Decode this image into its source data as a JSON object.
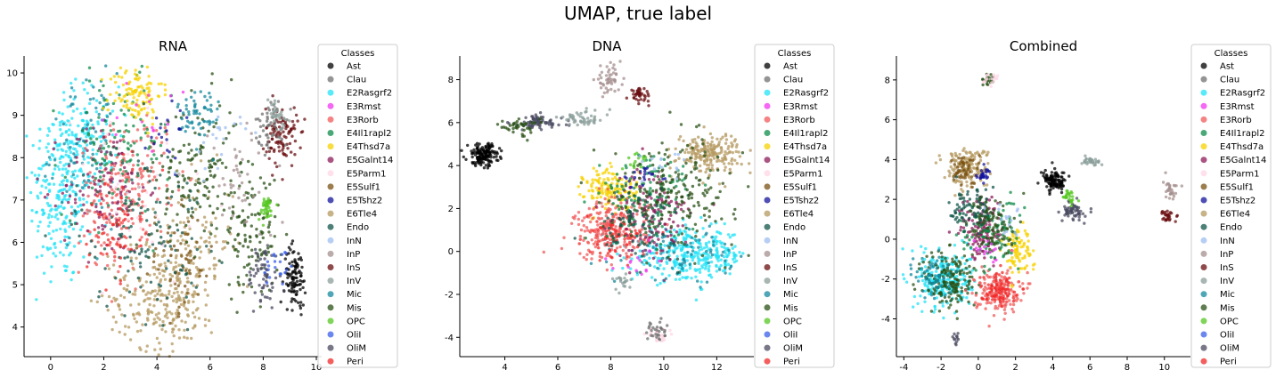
{
  "suptitle": "UMAP, true label",
  "legend": {
    "title": "Classes",
    "classes": [
      {
        "name": "Ast",
        "color": "#000000"
      },
      {
        "name": "Clau",
        "color": "#707070"
      },
      {
        "name": "E2Rasgrf2",
        "color": "#22e3f7"
      },
      {
        "name": "E3Rmst",
        "color": "#f234f0"
      },
      {
        "name": "E3Rorb",
        "color": "#f25a5a"
      },
      {
        "name": "E4Il1rapl2",
        "color": "#0f8c4a"
      },
      {
        "name": "E4Thsd7a",
        "color": "#f7d200"
      },
      {
        "name": "E5Galnt14",
        "color": "#8c1b5a"
      },
      {
        "name": "E5Parm1",
        "color": "#ffd6e6"
      },
      {
        "name": "E5Sulf1",
        "color": "#7a5213"
      },
      {
        "name": "E5Tshz2",
        "color": "#13139c"
      },
      {
        "name": "E6Tle4",
        "color": "#b59a60"
      },
      {
        "name": "Endo",
        "color": "#11564a"
      },
      {
        "name": "InN",
        "color": "#9fbdf0"
      },
      {
        "name": "InP",
        "color": "#a68f8f"
      },
      {
        "name": "InS",
        "color": "#6a0d10"
      },
      {
        "name": "InV",
        "color": "#8a9e9a"
      },
      {
        "name": "Mic",
        "color": "#13889e"
      },
      {
        "name": "Mis",
        "color": "#2a5217"
      },
      {
        "name": "OPC",
        "color": "#55c722"
      },
      {
        "name": "OliI",
        "color": "#3a5ee8"
      },
      {
        "name": "OliM",
        "color": "#4a4a60"
      },
      {
        "name": "Peri",
        "color": "#f22828"
      }
    ]
  },
  "chart_data": [
    {
      "type": "scatter",
      "title": "RNA",
      "xlim": [
        -1.0,
        10.2
      ],
      "ylim": [
        3.3,
        10.4
      ],
      "xticks": [
        0,
        2,
        4,
        6,
        8,
        10
      ],
      "yticks": [
        4,
        5,
        6,
        7,
        8,
        9,
        10
      ],
      "clusters": [
        {
          "cls": "E2Rasgrf2",
          "cx": 0.4,
          "cy": 7.2,
          "sx": 0.6,
          "sy": 1.1,
          "n": 260
        },
        {
          "cls": "E2Rasgrf2",
          "cx": 1.4,
          "cy": 8.5,
          "sx": 0.6,
          "sy": 0.6,
          "n": 110
        },
        {
          "cls": "Mic",
          "cx": 1.2,
          "cy": 8.2,
          "sx": 0.6,
          "sy": 0.9,
          "n": 80
        },
        {
          "cls": "E3Rorb",
          "cx": 2.3,
          "cy": 6.8,
          "sx": 0.6,
          "sy": 0.8,
          "n": 130
        },
        {
          "cls": "E3Rorb",
          "cx": 3.5,
          "cy": 7.6,
          "sx": 0.6,
          "sy": 0.7,
          "n": 90
        },
        {
          "cls": "E4Il1rapl2",
          "cx": 2.5,
          "cy": 8.2,
          "sx": 1.0,
          "sy": 0.8,
          "n": 120
        },
        {
          "cls": "E4Thsd7a",
          "cx": 3.2,
          "cy": 9.5,
          "sx": 0.5,
          "sy": 0.35,
          "n": 110
        },
        {
          "cls": "E5Galnt14",
          "cx": 2.0,
          "cy": 7.3,
          "sx": 0.8,
          "sy": 0.8,
          "n": 110
        },
        {
          "cls": "E6Tle4",
          "cx": 4.2,
          "cy": 4.7,
          "sx": 1.0,
          "sy": 0.6,
          "n": 250
        },
        {
          "cls": "E6Tle4",
          "cx": 5.5,
          "cy": 6.0,
          "sx": 0.7,
          "sy": 0.8,
          "n": 110
        },
        {
          "cls": "E5Sulf1",
          "cx": 4.8,
          "cy": 5.5,
          "sx": 0.7,
          "sy": 0.6,
          "n": 60
        },
        {
          "cls": "Mis",
          "cx": 5.6,
          "cy": 7.6,
          "sx": 0.8,
          "sy": 0.9,
          "n": 150
        },
        {
          "cls": "Mis",
          "cx": 7.6,
          "cy": 6.2,
          "sx": 0.5,
          "sy": 0.7,
          "n": 110
        },
        {
          "cls": "Endo",
          "cx": 3.4,
          "cy": 6.4,
          "sx": 1.2,
          "sy": 1.0,
          "n": 140
        },
        {
          "cls": "Mic",
          "cx": 5.6,
          "cy": 9.0,
          "sx": 0.4,
          "sy": 0.4,
          "n": 60
        },
        {
          "cls": "InS",
          "cx": 8.7,
          "cy": 8.5,
          "sx": 0.3,
          "sy": 0.35,
          "n": 100
        },
        {
          "cls": "Clau",
          "cx": 8.3,
          "cy": 8.8,
          "sx": 0.3,
          "sy": 0.3,
          "n": 50
        },
        {
          "cls": "InV",
          "cx": 8.5,
          "cy": 9.0,
          "sx": 0.25,
          "sy": 0.2,
          "n": 30
        },
        {
          "cls": "OPC",
          "cx": 8.1,
          "cy": 6.8,
          "sx": 0.15,
          "sy": 0.15,
          "n": 40
        },
        {
          "cls": "Ast",
          "cx": 9.2,
          "cy": 5.2,
          "sx": 0.2,
          "sy": 0.35,
          "n": 100
        },
        {
          "cls": "OliM",
          "cx": 8.0,
          "cy": 5.2,
          "sx": 0.3,
          "sy": 0.4,
          "n": 60
        },
        {
          "cls": "OliI",
          "cx": 8.6,
          "cy": 5.5,
          "sx": 0.3,
          "sy": 0.3,
          "n": 20
        },
        {
          "cls": "Peri",
          "cx": 2.4,
          "cy": 6.4,
          "sx": 0.5,
          "sy": 0.6,
          "n": 60
        },
        {
          "cls": "E5Parm1",
          "cx": 3.0,
          "cy": 7.0,
          "sx": 1.5,
          "sy": 1.2,
          "n": 40
        },
        {
          "cls": "InP",
          "cx": 7.2,
          "cy": 7.4,
          "sx": 0.6,
          "sy": 0.7,
          "n": 40
        },
        {
          "cls": "E5Tshz2",
          "cx": 4.5,
          "cy": 8.6,
          "sx": 0.5,
          "sy": 0.4,
          "n": 20
        },
        {
          "cls": "E3Rmst",
          "cx": 3.8,
          "cy": 8.8,
          "sx": 0.6,
          "sy": 0.4,
          "n": 15
        },
        {
          "cls": "InN",
          "cx": 6.2,
          "cy": 8.5,
          "sx": 0.5,
          "sy": 0.5,
          "n": 20
        }
      ]
    },
    {
      "type": "scatter",
      "title": "DNA",
      "xlim": [
        2.3,
        13.4
      ],
      "ylim": [
        -4.9,
        9.1
      ],
      "xticks": [
        4,
        6,
        8,
        10,
        12
      ],
      "yticks": [
        -4,
        -2,
        0,
        2,
        4,
        6,
        8
      ],
      "clusters": [
        {
          "cls": "Ast",
          "cx": 3.2,
          "cy": 4.5,
          "sx": 0.3,
          "sy": 0.25,
          "n": 150
        },
        {
          "cls": "OliM",
          "cx": 5.2,
          "cy": 6.0,
          "sx": 0.5,
          "sy": 0.18,
          "n": 80
        },
        {
          "cls": "InV",
          "cx": 7.0,
          "cy": 6.2,
          "sx": 0.5,
          "sy": 0.18,
          "n": 50
        },
        {
          "cls": "Mis",
          "cx": 4.5,
          "cy": 5.8,
          "sx": 0.4,
          "sy": 0.2,
          "n": 40
        },
        {
          "cls": "InP",
          "cx": 7.9,
          "cy": 8.0,
          "sx": 0.25,
          "sy": 0.3,
          "n": 50
        },
        {
          "cls": "InS",
          "cx": 9.1,
          "cy": 7.3,
          "sx": 0.2,
          "sy": 0.15,
          "n": 40
        },
        {
          "cls": "E2Rasgrf2",
          "cx": 11.0,
          "cy": -0.2,
          "sx": 1.1,
          "sy": 0.6,
          "n": 320
        },
        {
          "cls": "Mic",
          "cx": 10.6,
          "cy": 0.0,
          "sx": 1.0,
          "sy": 0.6,
          "n": 90
        },
        {
          "cls": "E6Tle4",
          "cx": 11.7,
          "cy": 4.6,
          "sx": 0.6,
          "sy": 0.45,
          "n": 200
        },
        {
          "cls": "E4Thsd7a",
          "cx": 8.0,
          "cy": 2.9,
          "sx": 0.5,
          "sy": 0.5,
          "n": 140
        },
        {
          "cls": "E3Rorb",
          "cx": 8.0,
          "cy": 1.0,
          "sx": 0.7,
          "sy": 0.7,
          "n": 220
        },
        {
          "cls": "Peri",
          "cx": 8.2,
          "cy": 0.6,
          "sx": 0.6,
          "sy": 0.5,
          "n": 80
        },
        {
          "cls": "E5Galnt14",
          "cx": 9.6,
          "cy": 1.8,
          "sx": 0.7,
          "sy": 1.1,
          "n": 150
        },
        {
          "cls": "E4Il1rapl2",
          "cx": 9.4,
          "cy": 2.6,
          "sx": 0.9,
          "sy": 1.0,
          "n": 130
        },
        {
          "cls": "Mis",
          "cx": 10.4,
          "cy": 2.8,
          "sx": 1.2,
          "sy": 1.2,
          "n": 200
        },
        {
          "cls": "Endo",
          "cx": 9.0,
          "cy": 1.2,
          "sx": 0.8,
          "sy": 0.8,
          "n": 70
        },
        {
          "cls": "E5Parm1",
          "cx": 9.8,
          "cy": -3.9,
          "sx": 0.2,
          "sy": 0.2,
          "n": 25
        },
        {
          "cls": "Clau",
          "cx": 9.7,
          "cy": -3.7,
          "sx": 0.2,
          "sy": 0.25,
          "n": 30
        },
        {
          "cls": "InV",
          "cx": 8.4,
          "cy": -1.4,
          "sx": 0.2,
          "sy": 0.2,
          "n": 20
        },
        {
          "cls": "E5Tshz2",
          "cx": 9.2,
          "cy": 3.6,
          "sx": 0.4,
          "sy": 0.3,
          "n": 20
        },
        {
          "cls": "E3Rmst",
          "cx": 9.0,
          "cy": -0.8,
          "sx": 0.6,
          "sy": 0.4,
          "n": 15
        },
        {
          "cls": "OPC",
          "cx": 8.9,
          "cy": 4.2,
          "sx": 0.3,
          "sy": 0.3,
          "n": 15
        },
        {
          "cls": "InN",
          "cx": 10.2,
          "cy": 4.0,
          "sx": 0.5,
          "sy": 0.4,
          "n": 15
        }
      ]
    },
    {
      "type": "scatter",
      "title": "Combined",
      "xlim": [
        -4.4,
        11.4
      ],
      "ylim": [
        -5.9,
        9.2
      ],
      "xticks": [
        -4,
        -2,
        0,
        2,
        4,
        6,
        8,
        10
      ],
      "yticks": [
        -4,
        -2,
        0,
        2,
        4,
        6,
        8
      ],
      "clusters": [
        {
          "cls": "E2Rasgrf2",
          "cx": -1.8,
          "cy": -2.0,
          "sx": 0.7,
          "sy": 0.7,
          "n": 260
        },
        {
          "cls": "Mis",
          "cx": -1.5,
          "cy": -2.1,
          "sx": 0.7,
          "sy": 0.8,
          "n": 170
        },
        {
          "cls": "Mic",
          "cx": -2.4,
          "cy": -1.8,
          "sx": 0.5,
          "sy": 0.6,
          "n": 60
        },
        {
          "cls": "E3Rorb",
          "cx": 1.0,
          "cy": -2.6,
          "sx": 0.6,
          "sy": 0.5,
          "n": 160
        },
        {
          "cls": "Peri",
          "cx": 1.1,
          "cy": -2.5,
          "sx": 0.5,
          "sy": 0.4,
          "n": 70
        },
        {
          "cls": "E4Thsd7a",
          "cx": 2.1,
          "cy": -0.5,
          "sx": 0.4,
          "sy": 0.6,
          "n": 90
        },
        {
          "cls": "E6Tle4",
          "cx": -0.6,
          "cy": 3.6,
          "sx": 0.6,
          "sy": 0.5,
          "n": 160
        },
        {
          "cls": "E5Sulf1",
          "cx": -0.8,
          "cy": 3.5,
          "sx": 0.4,
          "sy": 0.4,
          "n": 50
        },
        {
          "cls": "E5Galnt14",
          "cx": 0.2,
          "cy": 0.5,
          "sx": 0.6,
          "sy": 0.8,
          "n": 120
        },
        {
          "cls": "E4Il1rapl2",
          "cx": 0.6,
          "cy": 0.2,
          "sx": 0.8,
          "sy": 0.9,
          "n": 100
        },
        {
          "cls": "Endo",
          "cx": -0.3,
          "cy": 1.6,
          "sx": 0.6,
          "sy": 0.6,
          "n": 80
        },
        {
          "cls": "Mis",
          "cx": 0.8,
          "cy": 0.6,
          "sx": 0.7,
          "sy": 0.8,
          "n": 100
        },
        {
          "cls": "E5Tshz2",
          "cx": 0.3,
          "cy": 3.2,
          "sx": 0.2,
          "sy": 0.2,
          "n": 25
        },
        {
          "cls": "Ast",
          "cx": 4.1,
          "cy": 2.9,
          "sx": 0.3,
          "sy": 0.25,
          "n": 110
        },
        {
          "cls": "OliM",
          "cx": 5.1,
          "cy": 1.4,
          "sx": 0.3,
          "sy": 0.25,
          "n": 60
        },
        {
          "cls": "OPC",
          "cx": 4.9,
          "cy": 2.1,
          "sx": 0.2,
          "sy": 0.2,
          "n": 25
        },
        {
          "cls": "InV",
          "cx": 6.0,
          "cy": 3.9,
          "sx": 0.3,
          "sy": 0.1,
          "n": 30
        },
        {
          "cls": "InP",
          "cx": 10.3,
          "cy": 2.5,
          "sx": 0.2,
          "sy": 0.25,
          "n": 30
        },
        {
          "cls": "InS",
          "cx": 10.2,
          "cy": 1.2,
          "sx": 0.15,
          "sy": 0.15,
          "n": 30
        },
        {
          "cls": "Mis",
          "cx": 0.5,
          "cy": 8.0,
          "sx": 0.15,
          "sy": 0.15,
          "n": 20
        },
        {
          "cls": "E5Parm1",
          "cx": 0.7,
          "cy": 8.1,
          "sx": 0.2,
          "sy": 0.15,
          "n": 15
        },
        {
          "cls": "OliM",
          "cx": -1.2,
          "cy": -5.0,
          "sx": 0.1,
          "sy": 0.15,
          "n": 12
        },
        {
          "cls": "E3Rmst",
          "cx": 0.5,
          "cy": -0.5,
          "sx": 0.5,
          "sy": 0.4,
          "n": 15
        },
        {
          "cls": "InN",
          "cx": 1.5,
          "cy": 1.0,
          "sx": 0.5,
          "sy": 0.5,
          "n": 15
        }
      ]
    }
  ]
}
